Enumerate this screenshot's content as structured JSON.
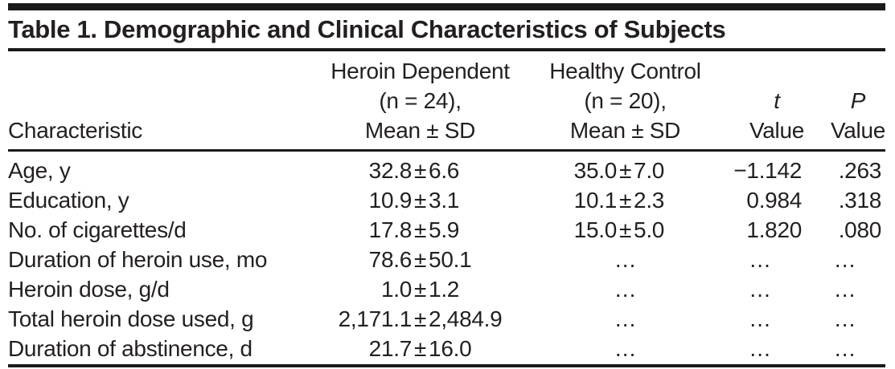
{
  "title": "Table 1. Demographic and Clinical Characteristics of Subjects",
  "colors": {
    "text": "#231f20",
    "rule": "#1a1a1a",
    "background": "#ffffff"
  },
  "table": {
    "plus_minus": "±",
    "ellipsis": "…",
    "header": {
      "characteristic": "Characteristic",
      "heroin_dependent": [
        "Heroin Dependent",
        "(n = 24),",
        "Mean ± SD"
      ],
      "healthy_control": [
        "Healthy Control",
        "(n = 20),",
        "Mean ± SD"
      ],
      "t": [
        "t",
        "Value"
      ],
      "p": [
        "P",
        "Value"
      ]
    },
    "rows": [
      {
        "characteristic": "Age, y",
        "heroin_dependent": {
          "mean": "32.8",
          "sd": "6.6"
        },
        "healthy_control": {
          "mean": "35.0",
          "sd": "7.0"
        },
        "t_value": "−1.142",
        "p_value": ".263"
      },
      {
        "characteristic": "Education, y",
        "heroin_dependent": {
          "mean": "10.9",
          "sd": "3.1"
        },
        "healthy_control": {
          "mean": "10.1",
          "sd": "2.3"
        },
        "t_value": "0.984",
        "p_value": ".318"
      },
      {
        "characteristic": "No. of cigarettes/d",
        "heroin_dependent": {
          "mean": "17.8",
          "sd": "5.9"
        },
        "healthy_control": {
          "mean": "15.0",
          "sd": "5.0"
        },
        "t_value": "1.820",
        "p_value": ".080"
      },
      {
        "characteristic": "Duration of heroin use, mo",
        "heroin_dependent": {
          "mean": "78.6",
          "sd": "50.1"
        },
        "healthy_control": "…",
        "t_value": "…",
        "p_value": "…"
      },
      {
        "characteristic": "Heroin dose, g/d",
        "heroin_dependent": {
          "mean": "1.0",
          "sd": "1.2"
        },
        "healthy_control": "…",
        "t_value": "…",
        "p_value": "…"
      },
      {
        "characteristic": "Total heroin dose used, g",
        "heroin_dependent": {
          "mean": "2,171.1",
          "sd": "2,484.9"
        },
        "healthy_control": "…",
        "t_value": "…",
        "p_value": "…"
      },
      {
        "characteristic": "Duration of abstinence, d",
        "heroin_dependent": {
          "mean": "21.7",
          "sd": "16.0"
        },
        "healthy_control": "…",
        "t_value": "…",
        "p_value": "…"
      }
    ]
  }
}
